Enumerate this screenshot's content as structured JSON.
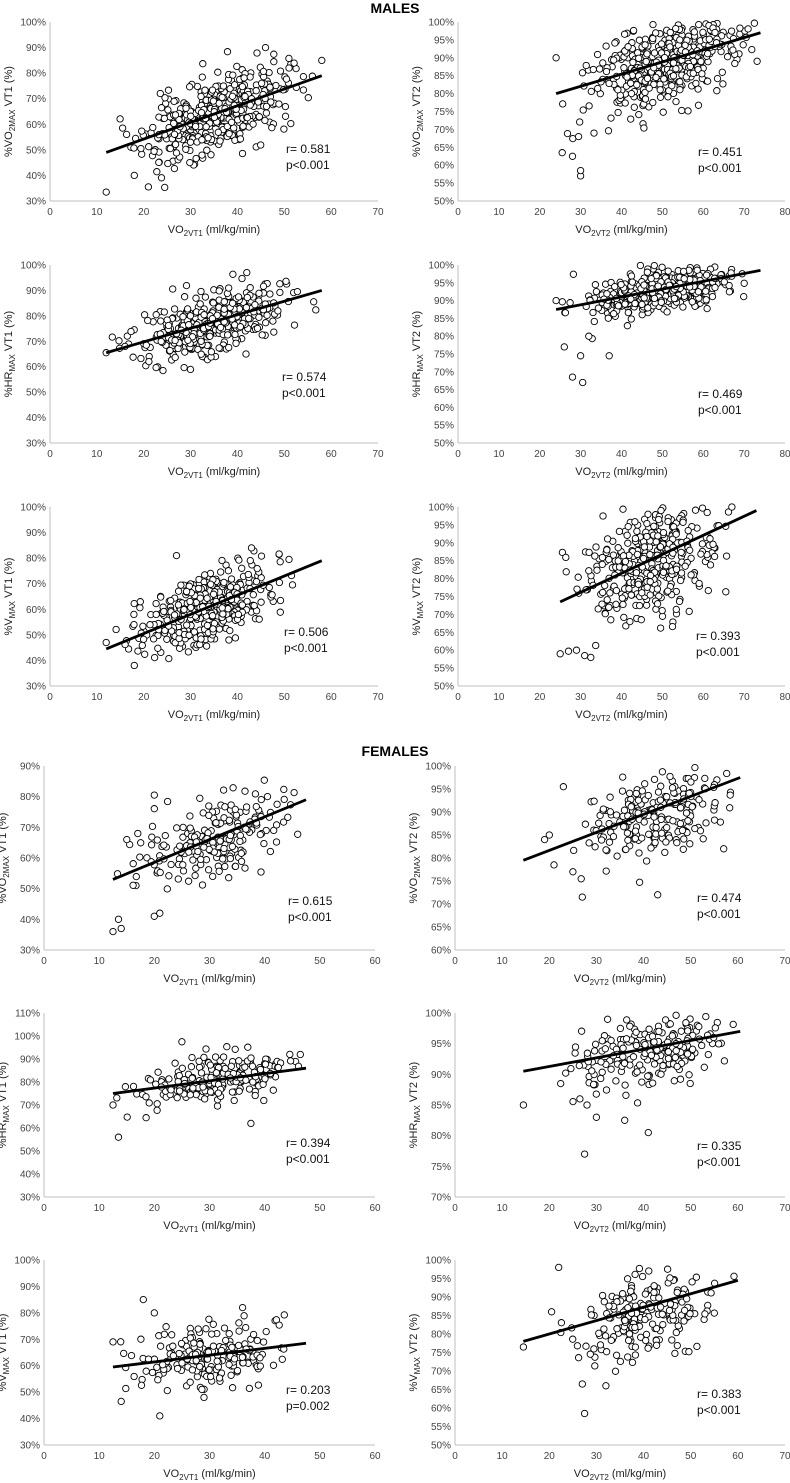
{
  "sections": {
    "males": "MALES",
    "females": "FEMALES"
  },
  "colors": {
    "marker_stroke": "#000000",
    "marker_fill": "#ffffff",
    "axis": "#bfbfbf",
    "fit_line": "#000000"
  },
  "chart_data": [
    {
      "type": "scatter",
      "section": "MALES",
      "ylabel": "%VO2MAX VT1 (%)",
      "ylabel_main": "%VO",
      "ylabel_sub": "2MAX",
      "ylabel_rest": " VT1 (%)",
      "xlabel": "VO2VT1 (ml/kg/min)",
      "xlabel_main": "VO",
      "xlabel_sub": "2VT1",
      "xlabel_rest": " (ml/kg/min)",
      "xlim": [
        0,
        70
      ],
      "xticks": [
        0,
        10,
        20,
        30,
        40,
        50,
        60,
        70
      ],
      "ylim": [
        30,
        100
      ],
      "yticks": [
        30,
        40,
        50,
        60,
        70,
        80,
        90,
        100
      ],
      "y_format": "percent",
      "r_text": "r= 0.581",
      "p_text": "p<0.001",
      "fit": [
        [
          12,
          49
        ],
        [
          58,
          79
        ]
      ],
      "cloud": {
        "n": 420,
        "xmean": 35,
        "xsd": 7.5,
        "ymean": 63.5,
        "ysd": 9,
        "corr": 0.581,
        "xmin": 12,
        "xmax": 58,
        "ymin": 33,
        "ymax": 90,
        "seed": 11
      },
      "outliers": [
        [
          12,
          33.5
        ],
        [
          15.5,
          58.5
        ],
        [
          21,
          35.5
        ],
        [
          46,
          90
        ],
        [
          58,
          85
        ],
        [
          18,
          40
        ],
        [
          51,
          82
        ]
      ]
    },
    {
      "type": "scatter",
      "section": "MALES",
      "ylabel": "%VO2MAX VT2 (%)",
      "ylabel_main": "%VO",
      "ylabel_sub": "2MAX",
      "ylabel_rest": " VT2 (%)",
      "xlabel": "VO2VT2 (ml/kg/min)",
      "xlabel_main": "VO",
      "xlabel_sub": "2VT2",
      "xlabel_rest": " (ml/kg/min)",
      "xlim": [
        0,
        80
      ],
      "xticks": [
        0,
        10,
        20,
        30,
        40,
        50,
        60,
        70,
        80
      ],
      "ylim": [
        50,
        100
      ],
      "yticks": [
        50,
        55,
        60,
        65,
        70,
        75,
        80,
        85,
        90,
        95,
        100
      ],
      "y_format": "percent",
      "r_text": "r= 0.451",
      "p_text": "p<0.001",
      "fit": [
        [
          24,
          80
        ],
        [
          74,
          97
        ]
      ],
      "cloud": {
        "n": 420,
        "xmean": 50,
        "xsd": 8.5,
        "ymean": 88,
        "ysd": 6.5,
        "corr": 0.451,
        "xmin": 24,
        "xmax": 74,
        "ymin": 63,
        "ymax": 100,
        "seed": 23
      },
      "outliers": [
        [
          24,
          90
        ],
        [
          25.5,
          63.5
        ],
        [
          28,
          62.5
        ],
        [
          30,
          57
        ],
        [
          30,
          58.5
        ],
        [
          29.5,
          68
        ]
      ]
    },
    {
      "type": "scatter",
      "section": "MALES",
      "ylabel": "%HRMAX VT1 (%)",
      "ylabel_main": "%HR",
      "ylabel_sub": "MAX",
      "ylabel_rest": " VT1 (%)",
      "xlabel": "VO2VT1 (ml/kg/min)",
      "xlabel_main": "VO",
      "xlabel_sub": "2VT1",
      "xlabel_rest": " (ml/kg/min)",
      "xlim": [
        0,
        70
      ],
      "xticks": [
        0,
        10,
        20,
        30,
        40,
        50,
        60,
        70
      ],
      "ylim": [
        30,
        100
      ],
      "yticks": [
        30,
        40,
        50,
        60,
        70,
        80,
        90,
        100
      ],
      "y_format": "percent",
      "r_text": "r= 0.574",
      "p_text": "p<0.001",
      "fit": [
        [
          12,
          65.5
        ],
        [
          58,
          90
        ]
      ],
      "cloud": {
        "n": 420,
        "xmean": 35,
        "xsd": 7.5,
        "ymean": 77.5,
        "ysd": 7,
        "corr": 0.574,
        "xmin": 12,
        "xmax": 58,
        "ymin": 56,
        "ymax": 97,
        "seed": 37
      },
      "outliers": [
        [
          12,
          65.5
        ],
        [
          42,
          97
        ],
        [
          16,
          68
        ]
      ]
    },
    {
      "type": "scatter",
      "section": "MALES",
      "ylabel": "%HRMAX VT2 (%)",
      "ylabel_main": "%HR",
      "ylabel_sub": "MAX",
      "ylabel_rest": " VT2 (%)",
      "xlabel": "VO2VT2 (ml/kg/min)",
      "xlabel_main": "VO",
      "xlabel_sub": "2VT2",
      "xlabel_rest": " (ml/kg/min)",
      "xlim": [
        0,
        80
      ],
      "xticks": [
        0,
        10,
        20,
        30,
        40,
        50,
        60,
        70,
        80
      ],
      "ylim": [
        50,
        100
      ],
      "yticks": [
        50,
        55,
        60,
        65,
        70,
        75,
        80,
        85,
        90,
        95,
        100
      ],
      "y_format": "percent",
      "r_text": "r= 0.469",
      "p_text": "p<0.001",
      "fit": [
        [
          24,
          87.5
        ],
        [
          74,
          98.5
        ]
      ],
      "cloud": {
        "n": 420,
        "xmean": 50,
        "xsd": 8.5,
        "ymean": 93,
        "ysd": 3.5,
        "corr": 0.469,
        "xmin": 24,
        "xmax": 74,
        "ymin": 74,
        "ymax": 100,
        "seed": 41
      },
      "outliers": [
        [
          24,
          90
        ],
        [
          26,
          77
        ],
        [
          28,
          68.5
        ],
        [
          30.5,
          67
        ],
        [
          30,
          74.5
        ],
        [
          37,
          74.5
        ],
        [
          32,
          80
        ]
      ]
    },
    {
      "type": "scatter",
      "section": "MALES",
      "ylabel": "%VMAX VT1 (%)",
      "ylabel_main": "%V",
      "ylabel_sub": "MAX",
      "ylabel_rest": " VT1 (%)",
      "xlabel": "VO2VT1 (ml/kg/min)",
      "xlabel_main": "VO",
      "xlabel_sub": "2VT1",
      "xlabel_rest": " (ml/kg/min)",
      "xlim": [
        0,
        70
      ],
      "xticks": [
        0,
        10,
        20,
        30,
        40,
        50,
        60,
        70
      ],
      "ylim": [
        30,
        100
      ],
      "yticks": [
        30,
        40,
        50,
        60,
        70,
        80,
        90,
        100
      ],
      "y_format": "percent",
      "r_text": "r= 0.506",
      "p_text": "p<0.001",
      "fit": [
        [
          12,
          44.5
        ],
        [
          58,
          79
        ]
      ],
      "cloud": {
        "n": 380,
        "xmean": 33,
        "xsd": 7,
        "ymean": 60,
        "ysd": 8,
        "corr": 0.506,
        "xmin": 12,
        "xmax": 52,
        "ymin": 37,
        "ymax": 84,
        "seed": 53
      },
      "outliers": [
        [
          12,
          47
        ],
        [
          27,
          81
        ],
        [
          43,
          84
        ],
        [
          51,
          79.5
        ],
        [
          18,
          38
        ]
      ]
    },
    {
      "type": "scatter",
      "section": "MALES",
      "ylabel": "%VMAX VT2 (%)",
      "ylabel_main": "%V",
      "ylabel_sub": "MAX",
      "ylabel_rest": " VT2 (%)",
      "xlabel": "VO2VT2 (ml/kg/min)",
      "xlabel_main": "VO",
      "xlabel_sub": "2VT2",
      "xlabel_rest": " (ml/kg/min)",
      "xlim": [
        0,
        80
      ],
      "xticks": [
        0,
        10,
        20,
        30,
        40,
        50,
        60,
        70,
        80
      ],
      "ylim": [
        50,
        100
      ],
      "yticks": [
        50,
        55,
        60,
        65,
        70,
        75,
        80,
        85,
        90,
        95,
        100
      ],
      "y_format": "percent",
      "r_text": "r= 0.393",
      "p_text": "p<0.001",
      "fit": [
        [
          25,
          73.5
        ],
        [
          73,
          99
        ]
      ],
      "cloud": {
        "n": 380,
        "xmean": 47,
        "xsd": 8,
        "ymean": 85,
        "ysd": 8,
        "corr": 0.393,
        "xmin": 25,
        "xmax": 68,
        "ymin": 58,
        "ymax": 100,
        "seed": 67
      },
      "outliers": [
        [
          25,
          59
        ],
        [
          29,
          60
        ],
        [
          31,
          58.5
        ],
        [
          32.5,
          58
        ],
        [
          67,
          100
        ]
      ]
    },
    {
      "type": "scatter",
      "section": "FEMALES",
      "ylabel": "%VO2MAX VT1 (%)",
      "ylabel_main": "%VO",
      "ylabel_sub": "2MAX",
      "ylabel_rest": " VT1 (%)",
      "xlabel": "VO2VT1 (ml/kg/min)",
      "xlabel_main": "VO",
      "xlabel_sub": "2VT1",
      "xlabel_rest": " (ml/kg/min)",
      "xlim": [
        0,
        60
      ],
      "xticks": [
        0,
        10,
        20,
        30,
        40,
        50,
        60
      ],
      "ylim": [
        30,
        90
      ],
      "yticks": [
        30,
        40,
        50,
        60,
        70,
        80,
        90
      ],
      "y_format": "percent",
      "r_text": "r= 0.615",
      "p_text": "p<0.001",
      "fit": [
        [
          12.5,
          53
        ],
        [
          47.5,
          79
        ]
      ],
      "cloud": {
        "n": 210,
        "xmean": 31,
        "xsd": 7,
        "ymean": 66,
        "ysd": 7.5,
        "corr": 0.615,
        "xmin": 13,
        "xmax": 48,
        "ymin": 36,
        "ymax": 86,
        "seed": 79
      },
      "outliers": [
        [
          12.5,
          36
        ],
        [
          13.5,
          40
        ],
        [
          14,
          37
        ],
        [
          20,
          80.5
        ],
        [
          20,
          41
        ],
        [
          21,
          42
        ],
        [
          15,
          66
        ],
        [
          17,
          68
        ]
      ]
    },
    {
      "type": "scatter",
      "section": "FEMALES",
      "ylabel": "%VO2MAX VT2 (%)",
      "ylabel_main": "%VO",
      "ylabel_sub": "2MAX",
      "ylabel_rest": " VT2 (%)",
      "xlabel": "VO2VT2 (ml/kg/min)",
      "xlabel_main": "VO",
      "xlabel_sub": "2VT2",
      "xlabel_rest": " (ml/kg/min)",
      "xlim": [
        0,
        70
      ],
      "xticks": [
        0,
        10,
        20,
        30,
        40,
        50,
        60,
        70
      ],
      "ylim": [
        60,
        100
      ],
      "yticks": [
        60,
        65,
        70,
        75,
        80,
        85,
        90,
        95,
        100
      ],
      "y_format": "percent",
      "r_text": "r= 0.474",
      "p_text": "p<0.001",
      "fit": [
        [
          14.5,
          79.5
        ],
        [
          60.5,
          97.5
        ]
      ],
      "cloud": {
        "n": 210,
        "xmean": 42,
        "xsd": 8,
        "ymean": 89.5,
        "ysd": 5.5,
        "corr": 0.474,
        "xmin": 18,
        "xmax": 60,
        "ymin": 72,
        "ymax": 100,
        "seed": 83
      },
      "outliers": [
        [
          19,
          84
        ],
        [
          20,
          85
        ],
        [
          21,
          78.5
        ],
        [
          23,
          95.5
        ],
        [
          25,
          77
        ],
        [
          27,
          71.5
        ],
        [
          43,
          72
        ],
        [
          57,
          82
        ]
      ]
    },
    {
      "type": "scatter",
      "section": "FEMALES",
      "ylabel": "%HRMAX VT1 (%)",
      "ylabel_main": "%HR",
      "ylabel_sub": "MAX",
      "ylabel_rest": " VT1 (%)",
      "xlabel": "VO2VT1 (ml/kg/min)",
      "xlabel_main": "VO",
      "xlabel_sub": "2VT1",
      "xlabel_rest": " (ml/kg/min)",
      "xlim": [
        0,
        60
      ],
      "xticks": [
        0,
        10,
        20,
        30,
        40,
        50,
        60
      ],
      "ylim": [
        30,
        110
      ],
      "yticks": [
        30,
        40,
        50,
        60,
        70,
        80,
        90,
        100,
        110
      ],
      "y_format": "percent",
      "r_text": "r= 0.394",
      "p_text": "p<0.001",
      "fit": [
        [
          12.5,
          75
        ],
        [
          47.5,
          86
        ]
      ],
      "cloud": {
        "n": 210,
        "xmean": 31,
        "xsd": 7,
        "ymean": 81,
        "ysd": 5.5,
        "corr": 0.394,
        "xmin": 13,
        "xmax": 48,
        "ymin": 60,
        "ymax": 97,
        "seed": 97
      },
      "outliers": [
        [
          13.5,
          56
        ],
        [
          25,
          97.5
        ],
        [
          37.5,
          62
        ],
        [
          12.5,
          70
        ],
        [
          18.5,
          64.5
        ]
      ]
    },
    {
      "type": "scatter",
      "section": "FEMALES",
      "ylabel": "%HRMAX VT2 (%)",
      "ylabel_main": "%HR",
      "ylabel_sub": "MAX",
      "ylabel_rest": " VT2 (%)",
      "xlabel": "VO2VT2 (ml/kg/min)",
      "xlabel_main": "VO",
      "xlabel_sub": "2VT2",
      "xlabel_rest": " (ml/kg/min)",
      "xlim": [
        0,
        70
      ],
      "xticks": [
        0,
        10,
        20,
        30,
        40,
        50,
        60,
        70
      ],
      "ylim": [
        70,
        100
      ],
      "yticks": [
        70,
        75,
        80,
        85,
        90,
        95,
        100
      ],
      "y_format": "percent",
      "r_text": "r= 0.335",
      "p_text": "p<0.001",
      "fit": [
        [
          14.5,
          90.5
        ],
        [
          60.5,
          97
        ]
      ],
      "cloud": {
        "n": 210,
        "xmean": 42,
        "xsd": 8,
        "ymean": 94,
        "ysd": 3,
        "corr": 0.335,
        "xmin": 18,
        "xmax": 60,
        "ymin": 82,
        "ymax": 100,
        "seed": 101
      },
      "outliers": [
        [
          14.5,
          85
        ],
        [
          27.5,
          77
        ],
        [
          30,
          83
        ],
        [
          41,
          80.5
        ],
        [
          36,
          82.5
        ],
        [
          26.5,
          86
        ],
        [
          28,
          85
        ]
      ]
    },
    {
      "type": "scatter",
      "section": "FEMALES",
      "ylabel": "%VMAX VT1 (%)",
      "ylabel_main": "%V",
      "ylabel_sub": "MAX",
      "ylabel_rest": " VT1 (%)",
      "xlabel": "VO2VT1 (ml/kg/min)",
      "xlabel_main": "VO",
      "xlabel_sub": "2VT1",
      "xlabel_rest": " (ml/kg/min)",
      "xlim": [
        0,
        60
      ],
      "xticks": [
        0,
        10,
        20,
        30,
        40,
        50,
        60
      ],
      "ylim": [
        30,
        100
      ],
      "yticks": [
        30,
        40,
        50,
        60,
        70,
        80,
        90,
        100
      ],
      "y_format": "percent",
      "r_text": "r= 0.203",
      "p_text": "p=0.002",
      "fit": [
        [
          12.5,
          59.5
        ],
        [
          47.5,
          68.5
        ]
      ],
      "cloud": {
        "n": 200,
        "xmean": 30,
        "xsd": 6.5,
        "ymean": 63.5,
        "ysd": 6.5,
        "corr": 0.203,
        "xmin": 13,
        "xmax": 44,
        "ymin": 47,
        "ymax": 80,
        "seed": 113
      },
      "outliers": [
        [
          18,
          85
        ],
        [
          20,
          80
        ],
        [
          21,
          41
        ],
        [
          14,
          46.5
        ],
        [
          29,
          48
        ],
        [
          12.5,
          69
        ],
        [
          36,
          82
        ]
      ]
    },
    {
      "type": "scatter",
      "section": "FEMALES",
      "ylabel": "%VMAX VT2 (%)",
      "ylabel_main": "%V",
      "ylabel_sub": "MAX",
      "ylabel_rest": " VT2 (%)",
      "xlabel": "VO2VT2 (ml/kg/min)",
      "xlabel_main": "VO",
      "xlabel_sub": "2VT2",
      "xlabel_rest": " (ml/kg/min)",
      "xlim": [
        0,
        70
      ],
      "xticks": [
        0,
        10,
        20,
        30,
        40,
        50,
        60,
        70
      ],
      "ylim": [
        50,
        100
      ],
      "yticks": [
        50,
        55,
        60,
        65,
        70,
        75,
        80,
        85,
        90,
        95,
        100
      ],
      "y_format": "percent",
      "r_text": "r= 0.383",
      "p_text": "p<0.001",
      "fit": [
        [
          14.5,
          78
        ],
        [
          60,
          94.5
        ]
      ],
      "cloud": {
        "n": 200,
        "xmean": 41,
        "xsd": 7.5,
        "ymean": 86.5,
        "ysd": 6.5,
        "corr": 0.383,
        "xmin": 18,
        "xmax": 60,
        "ymin": 64,
        "ymax": 99,
        "seed": 127
      },
      "outliers": [
        [
          14.5,
          76.5
        ],
        [
          20.5,
          86
        ],
        [
          22,
          98
        ],
        [
          27.5,
          58.5
        ],
        [
          27,
          66.5
        ],
        [
          32,
          66
        ]
      ]
    }
  ]
}
